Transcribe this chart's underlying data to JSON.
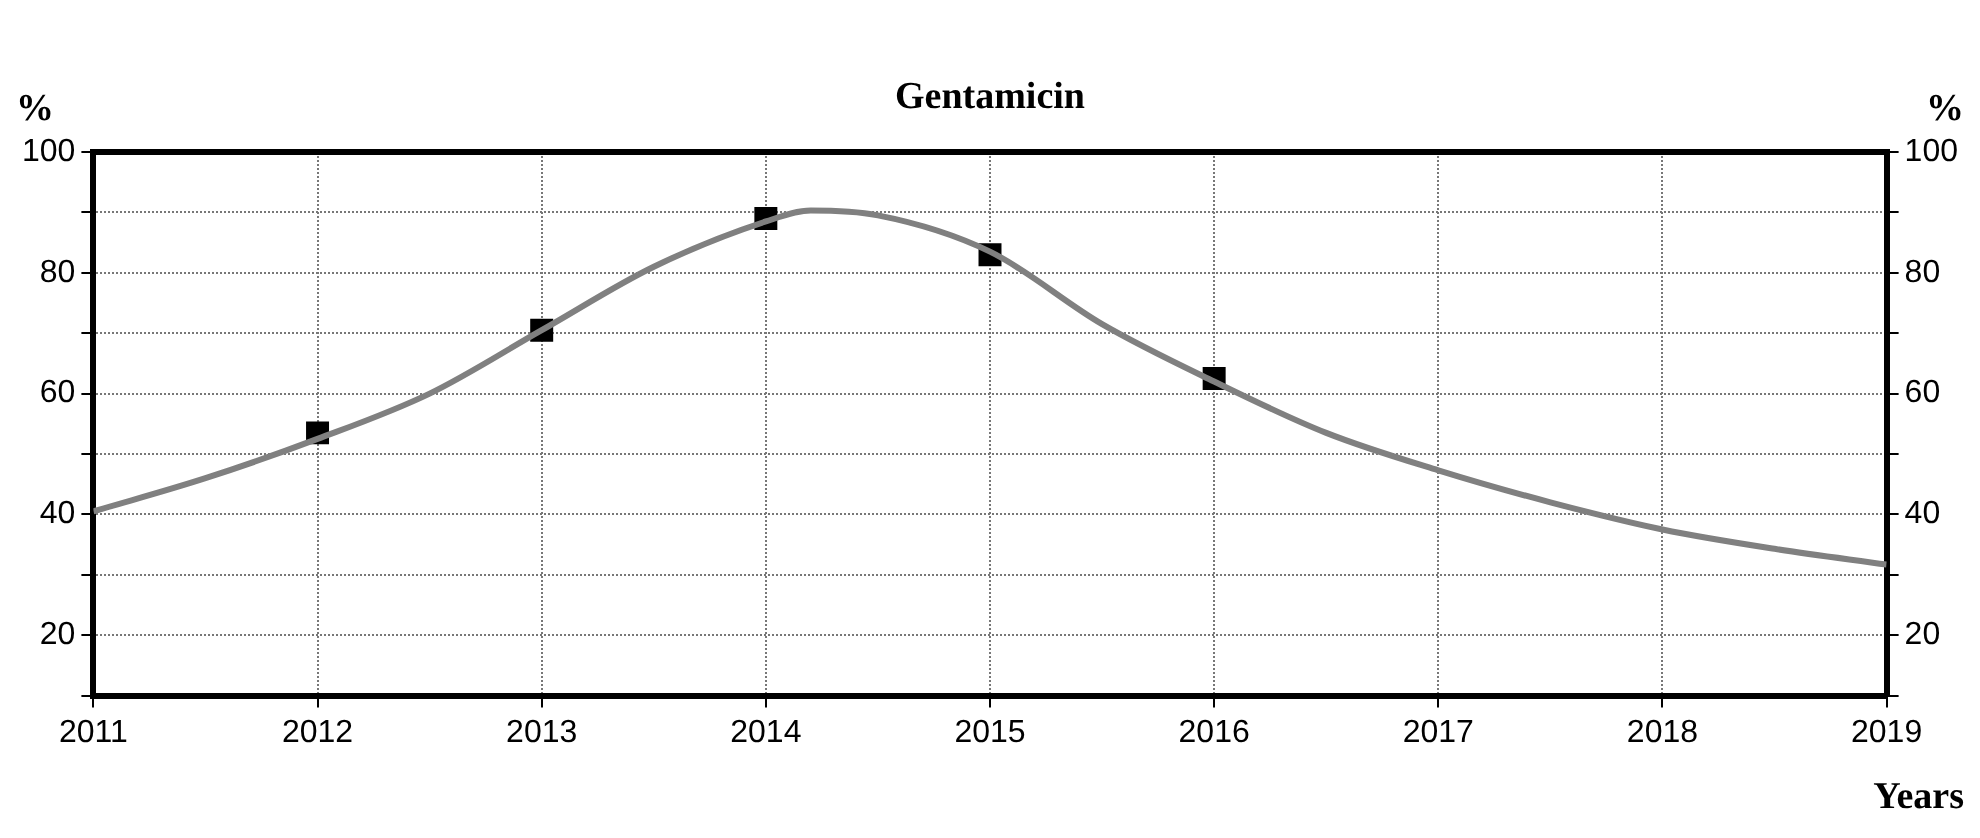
{
  "chart_data": {
    "type": "line",
    "title": "Gentamicin",
    "xlabel": "Years",
    "ylabel": "%",
    "y2label": "%",
    "x": [
      2012,
      2013,
      2014,
      2015,
      2016
    ],
    "series": [
      {
        "marker": "none",
        "color": "#808080",
        "x": [
          2011,
          2011.5,
          2012,
          2012.5,
          2013,
          2013.5,
          2014,
          2014.2,
          2014.5,
          2015,
          2015.5,
          2016,
          2016.5,
          2017,
          2017.5,
          2018,
          2018.5,
          2019
        ],
        "values": [
          40.5,
          46,
          52.5,
          60,
          70.5,
          81,
          88.5,
          90.3,
          89.5,
          83.5,
          71.5,
          62,
          53.5,
          47.3,
          42,
          37.5,
          34.3,
          31.7
        ]
      },
      {
        "type": "scatter",
        "marker": "square",
        "color": "#000000",
        "values": [
          53.5,
          70.5,
          89,
          83,
          62.5
        ]
      }
    ],
    "xlim": [
      2011,
      2019
    ],
    "xticks": [
      2011,
      2012,
      2013,
      2014,
      2015,
      2016,
      2017,
      2018,
      2019
    ],
    "ylim": [
      10,
      100
    ],
    "yticks": [
      {
        "value": 10,
        "label": null
      },
      20,
      {
        "value": 30,
        "label": null
      },
      40,
      {
        "value": 50,
        "label": null
      },
      60,
      {
        "value": 70,
        "label": null
      },
      80,
      {
        "value": 90,
        "label": null
      },
      100
    ],
    "y2lim": [
      10,
      100
    ],
    "y2ticks": [
      {
        "value": 10,
        "label": null
      },
      20,
      {
        "value": 30,
        "label": null
      },
      40,
      {
        "value": 50,
        "label": null
      },
      60,
      {
        "value": 70,
        "label": null
      },
      80,
      {
        "value": 90,
        "label": null
      },
      100
    ],
    "grid": true,
    "legend": false
  }
}
